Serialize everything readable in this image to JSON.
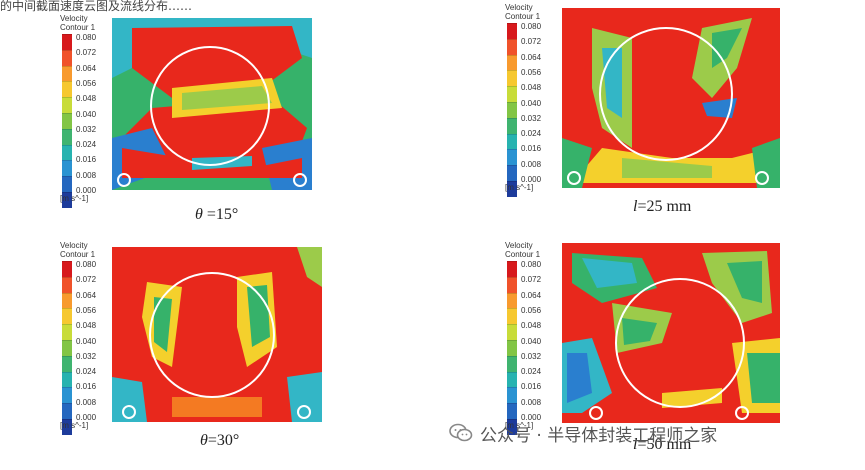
{
  "page_header_fragment": "的中间截面速度云图及流线分布……",
  "legend": {
    "title_line1": "Velocity",
    "title_line2": "Contour 1",
    "ticks": [
      "0.080",
      "0.072",
      "0.064",
      "0.056",
      "0.048",
      "0.040",
      "0.032",
      "0.024",
      "0.016",
      "0.008",
      "0.000"
    ],
    "unit": "[m s^-1]",
    "colors": [
      "#d7191c",
      "#f0522a",
      "#f89a2e",
      "#f6c830",
      "#c8dc39",
      "#82c545",
      "#3fb470",
      "#27b3b0",
      "#2a93d2",
      "#2467bf",
      "#1d3b9b"
    ]
  },
  "panels": [
    {
      "id": "theta15",
      "caption_var": "θ",
      "caption_rest": " =15°"
    },
    {
      "id": "l25",
      "caption_var": "l",
      "caption_rest": "=25 mm"
    },
    {
      "id": "theta30",
      "caption_var": "θ",
      "caption_rest": "=30°"
    },
    {
      "id": "l50",
      "caption_var": "l",
      "caption_rest": "=50 mm"
    }
  ],
  "watermark": {
    "icon": "wechat-icon",
    "text": "公众号 · 半导体封装工程师之家"
  },
  "colors": {
    "red": "#e8281c",
    "orange": "#f47a22",
    "yellow": "#f4d02c",
    "lightgreen": "#9ccb4a",
    "green": "#36b26a",
    "cyan": "#33b6c6",
    "blue": "#2a7fcf",
    "circle": "#ffffff"
  }
}
